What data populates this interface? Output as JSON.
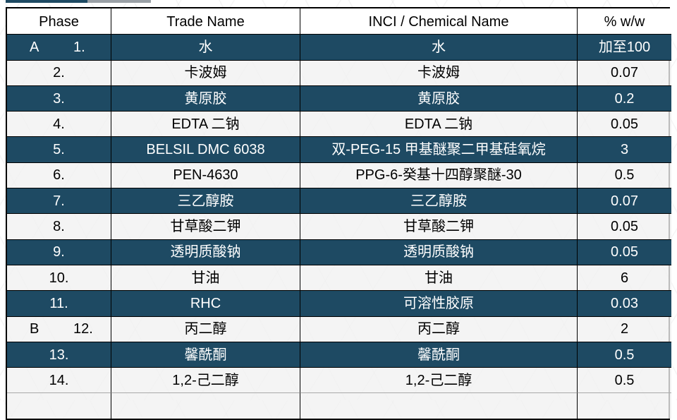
{
  "colors": {
    "dark_row": "#1e4a63",
    "light_row": "#f1f1f1",
    "header_bg": "#ffffff",
    "border": "#000000",
    "dark_row_text": "#ffffff",
    "light_row_text": "#000000"
  },
  "table": {
    "columns": [
      "Phase",
      "Trade Name",
      "INCI / Chemical Name",
      "% w/w"
    ],
    "rows": [
      {
        "phase": "A",
        "num": "1.",
        "trade": "水",
        "inci": "水",
        "pct": "加至100",
        "dark": true
      },
      {
        "phase": "",
        "num": "2.",
        "trade": "卡波姆",
        "inci": "卡波姆",
        "pct": "0.07",
        "dark": false
      },
      {
        "phase": "",
        "num": "3.",
        "trade": "黄原胶",
        "inci": "黄原胶",
        "pct": "0.2",
        "dark": true
      },
      {
        "phase": "",
        "num": "4.",
        "trade": "EDTA 二钠",
        "inci": "EDTA 二钠",
        "pct": "0.05",
        "dark": false
      },
      {
        "phase": "",
        "num": "5.",
        "trade": "BELSIL DMC 6038",
        "inci": "双-PEG-15 甲基醚聚二甲基硅氧烷",
        "pct": "3",
        "dark": true
      },
      {
        "phase": "",
        "num": "6.",
        "trade": "PEN-4630",
        "inci": "PPG-6-癸基十四醇聚醚-30",
        "pct": "0.5",
        "dark": false
      },
      {
        "phase": "",
        "num": "7.",
        "trade": "三乙醇胺",
        "inci": "三乙醇胺",
        "pct": "0.07",
        "dark": true
      },
      {
        "phase": "",
        "num": "8.",
        "trade": "甘草酸二钾",
        "inci": "甘草酸二钾",
        "pct": "0.05",
        "dark": false
      },
      {
        "phase": "",
        "num": "9.",
        "trade": "透明质酸钠",
        "inci": "透明质酸钠",
        "pct": "0.05",
        "dark": true
      },
      {
        "phase": "",
        "num": "10.",
        "trade": "甘油",
        "inci": "甘油",
        "pct": "6",
        "dark": false
      },
      {
        "phase": "",
        "num": "11.",
        "trade": "RHC",
        "inci": "可溶性胶原",
        "pct": "0.03",
        "dark": true
      },
      {
        "phase": "B",
        "num": "12.",
        "trade": "丙二醇",
        "inci": "丙二醇",
        "pct": "2",
        "dark": false
      },
      {
        "phase": "",
        "num": "13.",
        "trade": "馨酰酮",
        "inci": "馨酰酮",
        "pct": "0.5",
        "dark": true
      },
      {
        "phase": "",
        "num": "14.",
        "trade": "1,2-己二醇",
        "inci": "1,2-己二醇",
        "pct": "0.5",
        "dark": false
      }
    ]
  }
}
